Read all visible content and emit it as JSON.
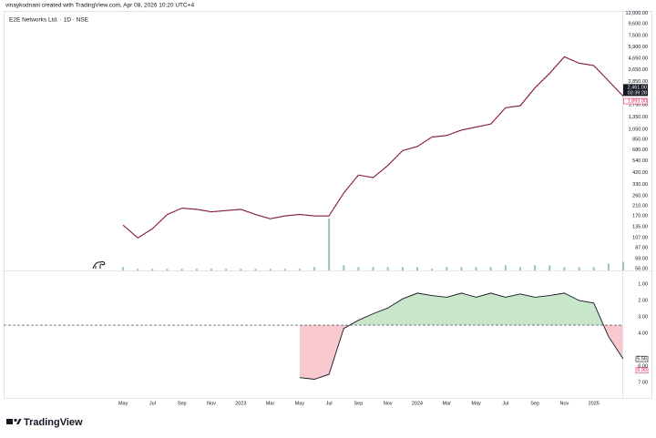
{
  "header": {
    "credit": "vinaykodnani created with TradingView.com, Apr 08, 2026 10:20 UTC+4"
  },
  "footer": {
    "brand": "TradingView"
  },
  "chart_data": [
    {
      "type": "line",
      "title": "E2E Networks Ltd. · 1D · NSE",
      "log_scale": true,
      "grid": false,
      "ylim": [
        54,
        12600
      ],
      "yticks": [
        {
          "value": 12000,
          "label": "12,000.00"
        },
        {
          "value": 9600,
          "label": "9,600.00"
        },
        {
          "value": 7500,
          "label": "7,500.00"
        },
        {
          "value": 5900,
          "label": "5,900.00"
        },
        {
          "value": 4650,
          "label": "4,650.00"
        },
        {
          "value": 3650,
          "label": "3,650.00"
        },
        {
          "value": 2850,
          "label": "2,850.00"
        },
        {
          "value": 1750,
          "label": "1,750.00"
        },
        {
          "value": 1350,
          "label": "1,350.00"
        },
        {
          "value": 1050,
          "label": "1,050.00"
        },
        {
          "value": 850,
          "label": "850.00"
        },
        {
          "value": 680,
          "label": "680.00"
        },
        {
          "value": 540,
          "label": "540.00"
        },
        {
          "value": 420,
          "label": "420.00"
        },
        {
          "value": 330,
          "label": "330.00"
        },
        {
          "value": 260,
          "label": "260.00"
        },
        {
          "value": 210,
          "label": "210.00"
        },
        {
          "value": 170,
          "label": "170.00"
        },
        {
          "value": 135,
          "label": "135.00"
        },
        {
          "value": 107,
          "label": "107.00"
        },
        {
          "value": 87,
          "label": "87.00"
        },
        {
          "value": 69,
          "label": "69.00"
        },
        {
          "value": 56,
          "label": "56.00"
        }
      ],
      "series": [
        {
          "name": "E2E Networks Ltd.",
          "color": "#e0245e",
          "values": [
            null,
            140,
            107,
            130,
            175,
            200,
            195,
            185,
            190,
            195,
            175,
            160,
            170,
            175,
            170,
            170,
            275,
            400,
            380,
            490,
            670,
            730,
            890,
            920,
            1030,
            1100,
            1170,
            1650,
            1720,
            2500,
            3400,
            4800,
            4200,
            4000,
            2900,
            2100
          ]
        }
      ],
      "volume": {
        "color": "#8fc9b4",
        "values": [
          null,
          2,
          1,
          1,
          1,
          1,
          1,
          1,
          1,
          1,
          1,
          1,
          1,
          1,
          2,
          30,
          3,
          2,
          2,
          2,
          2,
          2,
          1,
          2,
          2,
          2,
          2,
          3,
          2,
          3,
          3,
          2,
          2,
          2,
          4,
          5
        ]
      },
      "last_price": {
        "value": 2461,
        "label": "2,461.00"
      },
      "countdown": "03:39:28",
      "ref_price": {
        "value": 1893,
        "label": "1,893.00"
      }
    },
    {
      "type": "baseline",
      "grid": false,
      "categories": [
        null,
        "May",
        null,
        "Jul",
        null,
        "Sep",
        null,
        "Nov",
        null,
        "2023",
        null,
        "Mar",
        null,
        "May",
        null,
        "Jul",
        null,
        "Sep",
        null,
        "Nov",
        null,
        "2024",
        null,
        "Mar",
        null,
        "May",
        null,
        "Jul",
        null,
        "Sep",
        null,
        "Nov",
        null,
        "2025",
        null,
        null
      ],
      "ylim": [
        7.94,
        0.22
      ],
      "yticks": [
        {
          "value": 1,
          "label": "1.00"
        },
        {
          "value": 2,
          "label": "2.00"
        },
        {
          "value": 3,
          "label": "3.00"
        },
        {
          "value": 4,
          "label": "4.00"
        },
        {
          "value": 6,
          "label": "6.00"
        },
        {
          "value": 7,
          "label": "7.00"
        }
      ],
      "baseline": 3.5,
      "above_color": "#c8e6c9",
      "below_color": "#f8c9cf",
      "line_color": "#131722",
      "series": [
        {
          "name": "Indicator",
          "values": [
            null,
            null,
            null,
            null,
            null,
            null,
            null,
            null,
            null,
            null,
            null,
            null,
            null,
            6.7,
            6.8,
            6.5,
            3.7,
            3.2,
            2.8,
            2.45,
            1.9,
            1.55,
            1.7,
            1.8,
            1.55,
            1.8,
            1.55,
            1.8,
            1.6,
            1.8,
            1.7,
            1.55,
            2.0,
            2.15,
            4.2,
            5.56
          ]
        }
      ],
      "last_value": {
        "value": 5.56,
        "label": "5.56"
      },
      "ref_value": {
        "value": 5.9,
        "label": "5.90"
      }
    }
  ]
}
